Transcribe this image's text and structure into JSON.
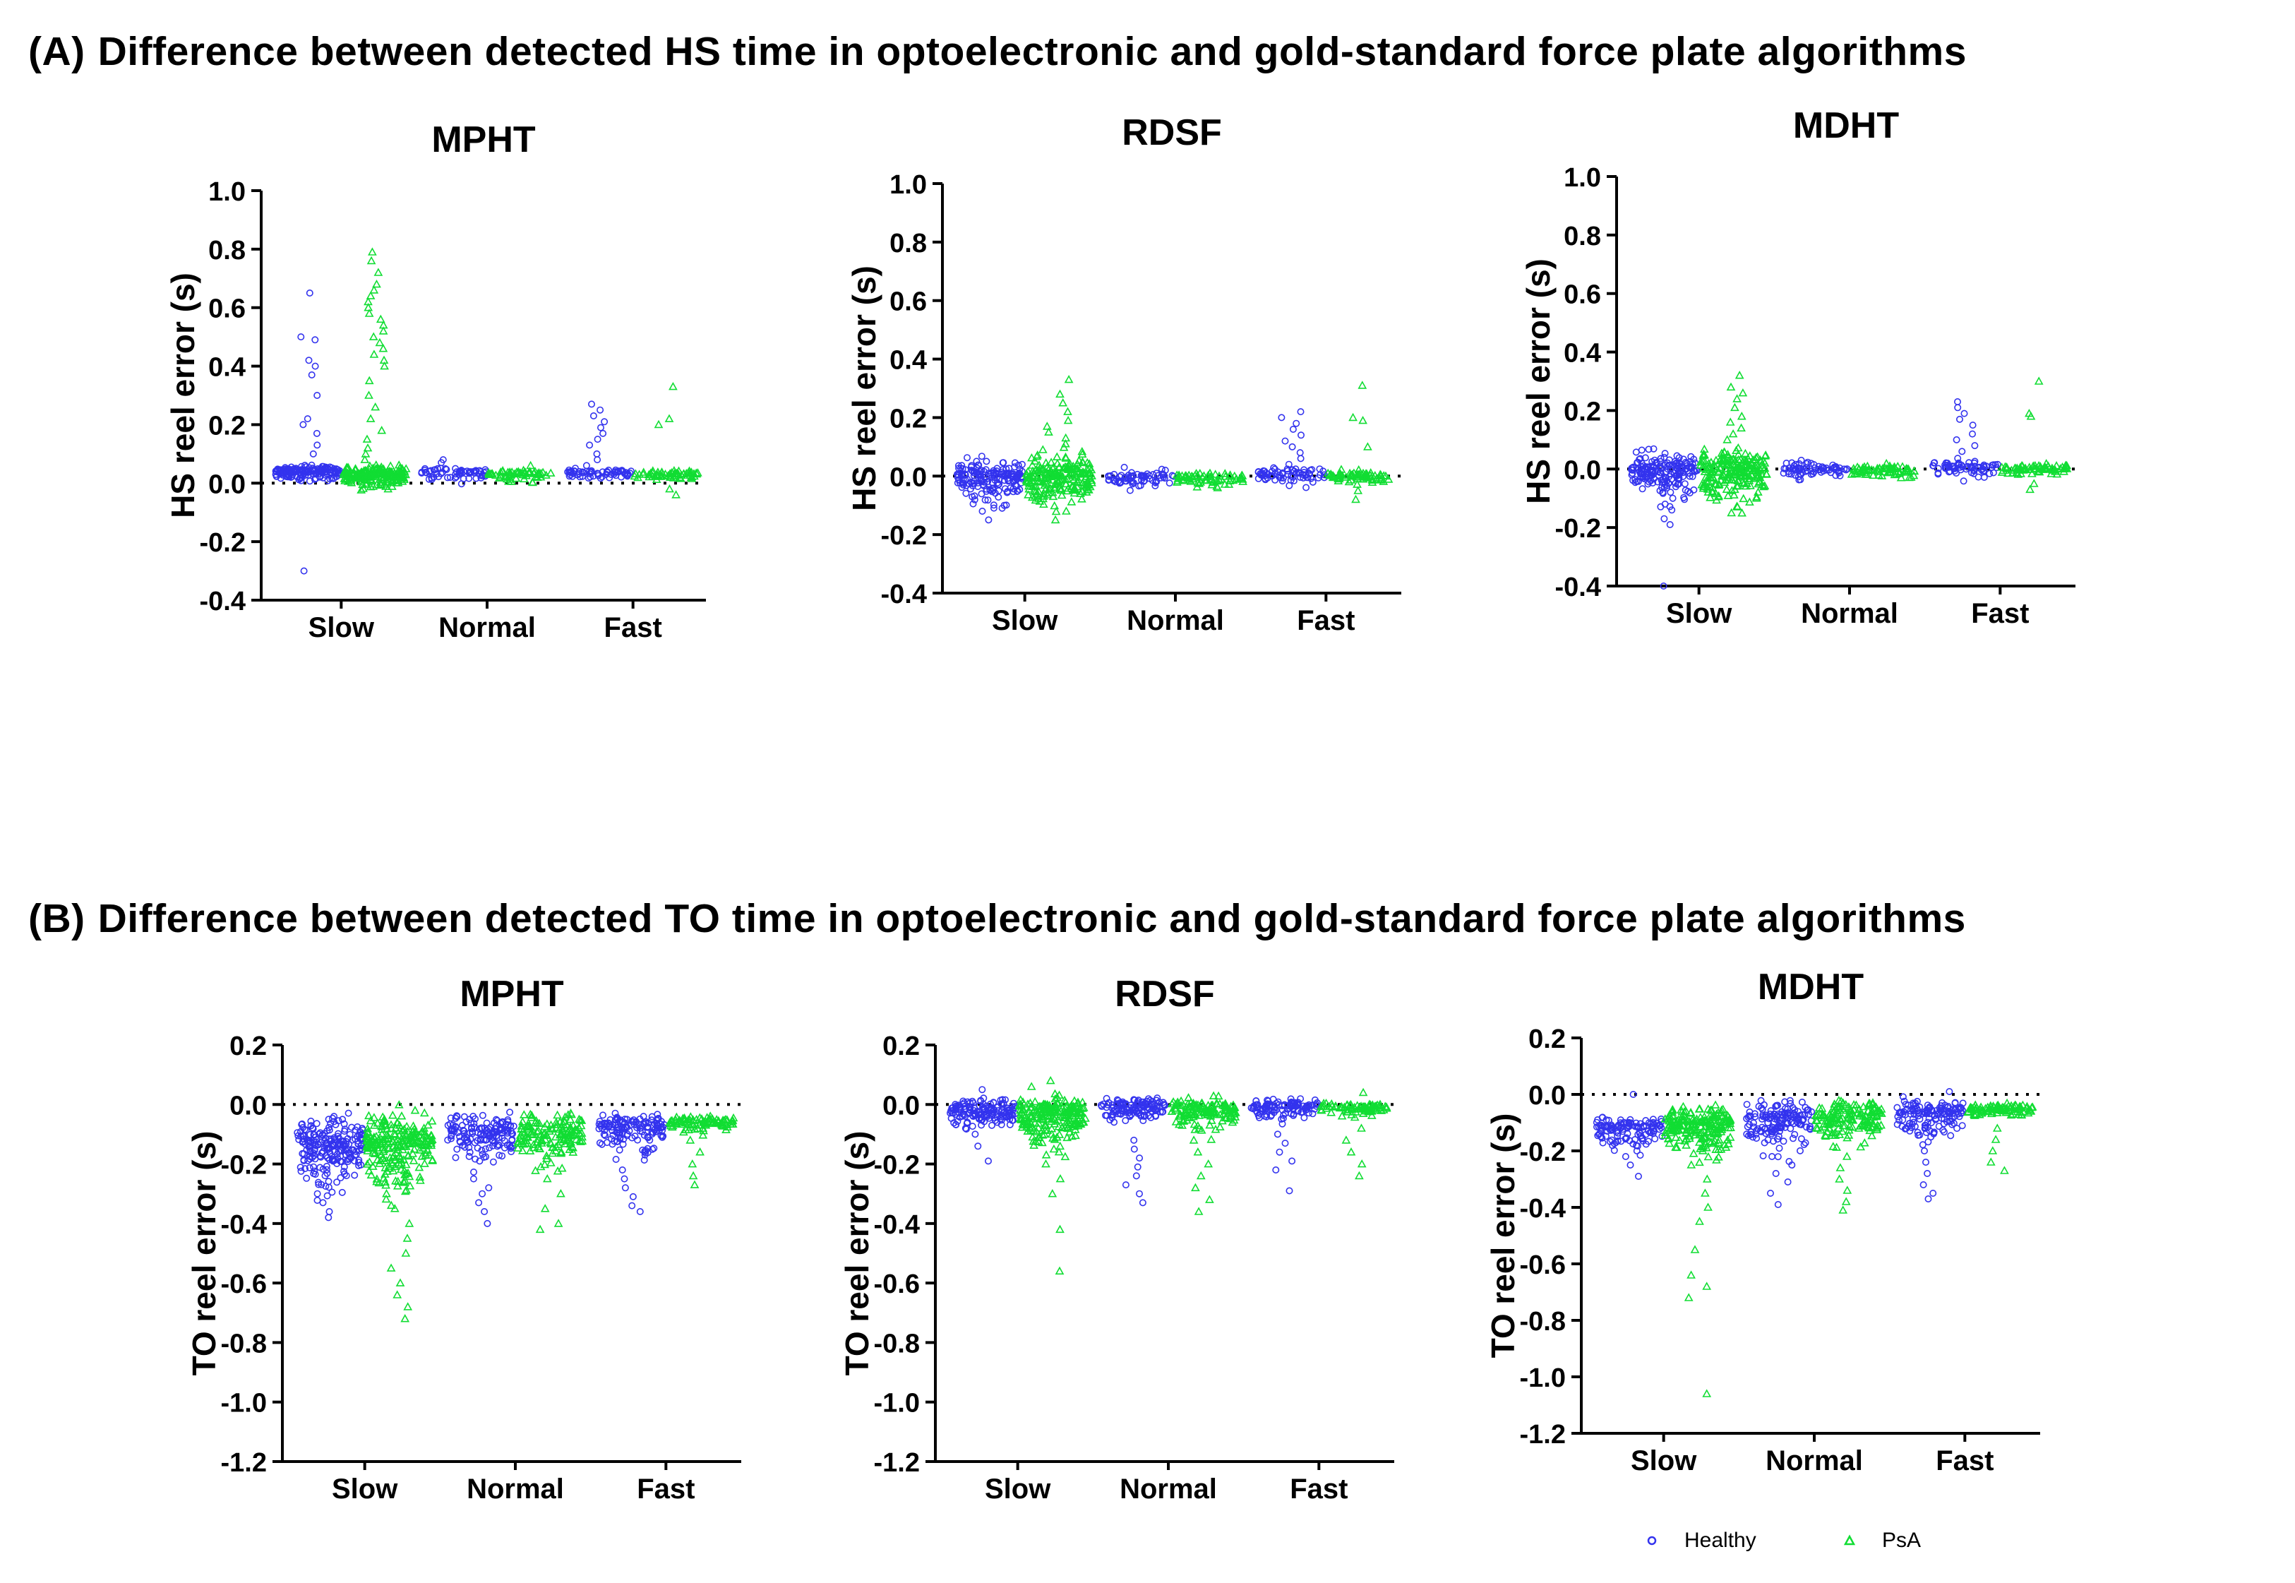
{
  "sections": [
    {
      "label": "(A)",
      "title": "Difference between detected HS time in optoelectronic and gold-standard force plate algorithms"
    },
    {
      "label": "(B)",
      "title": "Difference between detected TO time in optoelectronic and gold-standard force plate algorithms"
    }
  ],
  "legend": {
    "healthy": "Healthy",
    "psa": "PsA"
  },
  "colors": {
    "healthy": "#3333ee",
    "psa": "#11dd33",
    "axis": "#000000"
  },
  "chart_data": [
    {
      "type": "scatter",
      "section": "A",
      "title": "MPHT",
      "ylabel": "HS reel error (s)",
      "xlabel": "",
      "categories": [
        "Slow",
        "Normal",
        "Fast"
      ],
      "ylim": [
        -0.4,
        1.0
      ],
      "ticks": [
        "1.0",
        "0.8",
        "0.6",
        "0.4",
        "0.2",
        "0.0",
        "-0.2",
        "-0.4"
      ],
      "reference_line": 0.0,
      "series": [
        {
          "name": "Healthy",
          "groups": [
            {
              "center": 0.04,
              "spread": 0.015,
              "n": 160,
              "outliers": [
                0.65,
                0.5,
                0.49,
                0.42,
                0.4,
                0.37,
                0.3,
                0.22,
                0.2,
                0.17,
                0.13,
                0.1,
                -0.3
              ]
            },
            {
              "center": 0.035,
              "spread": 0.012,
              "n": 60,
              "outliers": [
                0.08,
                0.07
              ]
            },
            {
              "center": 0.035,
              "spread": 0.01,
              "n": 60,
              "outliers": [
                0.27,
                0.25,
                0.23,
                0.21,
                0.19,
                0.17,
                0.15,
                0.13,
                0.1,
                0.08,
                0.06
              ]
            }
          ]
        },
        {
          "name": "PsA",
          "groups": [
            {
              "center": 0.03,
              "spread": 0.02,
              "n": 200,
              "outliers": [
                0.79,
                0.76,
                0.72,
                0.68,
                0.66,
                0.64,
                0.62,
                0.6,
                0.58,
                0.56,
                0.54,
                0.52,
                0.5,
                0.48,
                0.46,
                0.44,
                0.42,
                0.4,
                0.35,
                0.3,
                0.26,
                0.22,
                0.18,
                0.15,
                0.12,
                0.1,
                0.08,
                -0.02
              ]
            },
            {
              "center": 0.03,
              "spread": 0.012,
              "n": 60,
              "outliers": [
                0.06
              ]
            },
            {
              "center": 0.03,
              "spread": 0.01,
              "n": 60,
              "outliers": [
                0.33,
                0.22,
                0.2,
                -0.02,
                -0.04
              ]
            }
          ]
        }
      ]
    },
    {
      "type": "scatter",
      "section": "A",
      "title": "RDSF",
      "ylabel": "HS reel error (s)",
      "xlabel": "",
      "categories": [
        "Slow",
        "Normal",
        "Fast"
      ],
      "ylim": [
        -0.4,
        1.0
      ],
      "ticks": [
        "1.0",
        "0.8",
        "0.6",
        "0.4",
        "0.2",
        "0.0",
        "-0.2",
        "-0.4"
      ],
      "reference_line": 0.0,
      "series": [
        {
          "name": "Healthy",
          "groups": [
            {
              "center": 0.0,
              "spread": 0.04,
              "n": 170,
              "outliers": [
                -0.1,
                -0.12,
                -0.15
              ]
            },
            {
              "center": -0.005,
              "spread": 0.015,
              "n": 70,
              "outliers": [
                0.03
              ]
            },
            {
              "center": 0.005,
              "spread": 0.015,
              "n": 70,
              "outliers": [
                0.22,
                0.2,
                0.18,
                0.16,
                0.14,
                0.12,
                0.1,
                0.08,
                0.06,
                0.04
              ]
            }
          ]
        },
        {
          "name": "PsA",
          "groups": [
            {
              "center": 0.0,
              "spread": 0.05,
              "n": 210,
              "outliers": [
                0.33,
                0.28,
                0.25,
                0.22,
                0.19,
                0.17,
                0.15,
                0.13,
                0.11,
                0.09,
                -0.12,
                -0.15
              ]
            },
            {
              "center": -0.005,
              "spread": 0.015,
              "n": 70,
              "outliers": [
                -0.04
              ]
            },
            {
              "center": 0.0,
              "spread": 0.012,
              "n": 70,
              "outliers": [
                0.31,
                0.2,
                0.19,
                0.1,
                -0.05,
                -0.08
              ]
            }
          ]
        }
      ]
    },
    {
      "type": "scatter",
      "section": "A",
      "title": "MDHT",
      "ylabel": "HS reel error (s)",
      "xlabel": "",
      "categories": [
        "Slow",
        "Normal",
        "Fast"
      ],
      "ylim": [
        -0.4,
        1.0
      ],
      "ticks": [
        "1.0",
        "0.8",
        "0.6",
        "0.4",
        "0.2",
        "0.0",
        "-0.2",
        "-0.4"
      ],
      "reference_line": 0.0,
      "series": [
        {
          "name": "Healthy",
          "groups": [
            {
              "center": -0.01,
              "spread": 0.045,
              "n": 180,
              "outliers": [
                -0.1,
                -0.12,
                -0.14,
                -0.17,
                -0.19,
                -0.4
              ]
            },
            {
              "center": 0.0,
              "spread": 0.015,
              "n": 70,
              "outliers": [
                0.03
              ]
            },
            {
              "center": 0.005,
              "spread": 0.015,
              "n": 70,
              "outliers": [
                0.23,
                0.21,
                0.19,
                0.17,
                0.15,
                0.12,
                0.1,
                0.08,
                0.06
              ]
            }
          ]
        },
        {
          "name": "PsA",
          "groups": [
            {
              "center": 0.0,
              "spread": 0.05,
              "n": 210,
              "outliers": [
                0.32,
                0.28,
                0.26,
                0.24,
                0.21,
                0.18,
                0.16,
                0.14,
                0.12,
                0.1,
                -0.1,
                -0.13,
                -0.15
              ]
            },
            {
              "center": -0.005,
              "spread": 0.015,
              "n": 70,
              "outliers": [
                -0.03
              ]
            },
            {
              "center": 0.0,
              "spread": 0.012,
              "n": 70,
              "outliers": [
                0.3,
                0.19,
                0.18,
                -0.05,
                -0.07
              ]
            }
          ]
        }
      ]
    },
    {
      "type": "scatter",
      "section": "B",
      "title": "MPHT",
      "ylabel": "TO reel error (s)",
      "xlabel": "",
      "categories": [
        "Slow",
        "Normal",
        "Fast"
      ],
      "ylim": [
        -1.2,
        0.2
      ],
      "ticks": [
        "0.2",
        "0.0",
        "-0.2",
        "-0.4",
        "-0.6",
        "-0.8",
        "-1.0",
        "-1.2"
      ],
      "reference_line": 0.0,
      "series": [
        {
          "name": "Healthy",
          "groups": [
            {
              "center": -0.14,
              "spread": 0.06,
              "n": 220,
              "outliers": [
                -0.3,
                -0.33,
                -0.36,
                -0.38,
                -0.05,
                -0.04
              ]
            },
            {
              "center": -0.1,
              "spread": 0.05,
              "n": 150,
              "outliers": [
                -0.25,
                -0.28,
                -0.3,
                -0.33,
                -0.36,
                -0.4,
                -0.05
              ]
            },
            {
              "center": -0.08,
              "spread": 0.04,
              "n": 140,
              "outliers": [
                -0.22,
                -0.25,
                -0.28,
                -0.31,
                -0.34,
                -0.36
              ]
            }
          ]
        },
        {
          "name": "PsA",
          "groups": [
            {
              "center": -0.13,
              "spread": 0.07,
              "n": 240,
              "outliers": [
                -0.3,
                -0.35,
                -0.4,
                -0.45,
                -0.5,
                -0.55,
                -0.6,
                -0.64,
                -0.68,
                -0.72,
                -0.02
              ]
            },
            {
              "center": -0.1,
              "spread": 0.05,
              "n": 150,
              "outliers": [
                -0.25,
                -0.3,
                -0.35,
                -0.4,
                -0.42
              ]
            },
            {
              "center": -0.06,
              "spread": 0.015,
              "n": 90,
              "outliers": [
                -0.12,
                -0.16,
                -0.2,
                -0.24,
                -0.27
              ]
            }
          ]
        }
      ]
    },
    {
      "type": "scatter",
      "section": "B",
      "title": "RDSF",
      "ylabel": "TO reel error (s)",
      "xlabel": "",
      "categories": [
        "Slow",
        "Normal",
        "Fast"
      ],
      "ylim": [
        -1.2,
        0.2
      ],
      "ticks": [
        "0.2",
        "0.0",
        "-0.2",
        "-0.4",
        "-0.6",
        "-0.8",
        "-1.0",
        "-1.2"
      ],
      "reference_line": 0.0,
      "series": [
        {
          "name": "Healthy",
          "groups": [
            {
              "center": -0.02,
              "spread": 0.03,
              "n": 150,
              "outliers": [
                0.05,
                -0.1,
                -0.14,
                -0.19
              ]
            },
            {
              "center": -0.01,
              "spread": 0.025,
              "n": 120,
              "outliers": [
                -0.12,
                -0.15,
                -0.18,
                -0.21,
                -0.24,
                -0.27,
                -0.3,
                -0.33
              ]
            },
            {
              "center": -0.01,
              "spread": 0.02,
              "n": 110,
              "outliers": [
                -0.1,
                -0.13,
                -0.16,
                -0.19,
                -0.22,
                -0.29
              ]
            }
          ]
        },
        {
          "name": "PsA",
          "groups": [
            {
              "center": -0.03,
              "spread": 0.045,
              "n": 210,
              "outliers": [
                0.08,
                0.06,
                -0.15,
                -0.2,
                -0.25,
                -0.3,
                -0.42,
                -0.56
              ]
            },
            {
              "center": -0.02,
              "spread": 0.03,
              "n": 130,
              "outliers": [
                -0.12,
                -0.16,
                -0.2,
                -0.24,
                -0.28,
                -0.32,
                -0.36
              ]
            },
            {
              "center": -0.01,
              "spread": 0.012,
              "n": 80,
              "outliers": [
                0.04,
                -0.08,
                -0.12,
                -0.16,
                -0.2,
                -0.24
              ]
            }
          ]
        }
      ]
    },
    {
      "type": "scatter",
      "section": "B",
      "title": "MDHT",
      "ylabel": "TO reel error (s)",
      "xlabel": "",
      "categories": [
        "Slow",
        "Normal",
        "Fast"
      ],
      "ylim": [
        -1.2,
        0.2
      ],
      "ticks": [
        "0.2",
        "0.0",
        "-0.2",
        "-0.4",
        "-0.6",
        "-0.8",
        "-1.0",
        "-1.2"
      ],
      "reference_line": 0.0,
      "series": [
        {
          "name": "Healthy",
          "groups": [
            {
              "center": -0.12,
              "spread": 0.03,
              "n": 120,
              "outliers": [
                -0.2,
                -0.22,
                -0.25,
                -0.29,
                0.0
              ]
            },
            {
              "center": -0.09,
              "spread": 0.05,
              "n": 150,
              "outliers": [
                -0.22,
                -0.25,
                -0.28,
                -0.31,
                -0.35,
                -0.39
              ]
            },
            {
              "center": -0.07,
              "spread": 0.04,
              "n": 140,
              "outliers": [
                -0.2,
                -0.24,
                -0.28,
                -0.32,
                -0.35,
                -0.37,
                0.01
              ]
            }
          ]
        },
        {
          "name": "PsA",
          "groups": [
            {
              "center": -0.11,
              "spread": 0.05,
              "n": 210,
              "outliers": [
                -0.25,
                -0.3,
                -0.35,
                -0.4,
                -0.45,
                -0.55,
                -0.64,
                -0.68,
                -0.72,
                -1.06
              ]
            },
            {
              "center": -0.08,
              "spread": 0.045,
              "n": 150,
              "outliers": [
                -0.22,
                -0.26,
                -0.3,
                -0.34,
                -0.38,
                -0.41
              ]
            },
            {
              "center": -0.05,
              "spread": 0.015,
              "n": 90,
              "outliers": [
                -0.12,
                -0.16,
                -0.2,
                -0.24,
                -0.27
              ]
            }
          ]
        }
      ]
    }
  ]
}
